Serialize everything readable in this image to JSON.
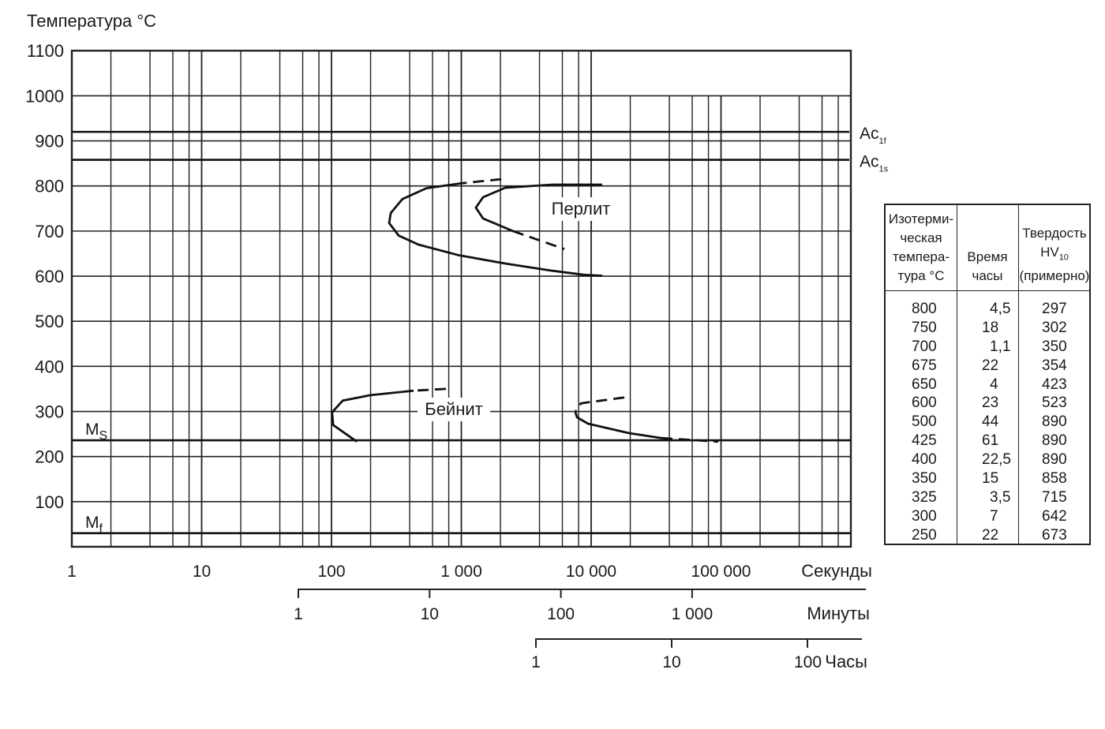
{
  "chart_data": {
    "type": "line",
    "title": "",
    "ylabel": "Температура °C",
    "xscale": "log",
    "xlim": [
      1,
      1000000
    ],
    "ylim": [
      0,
      1100
    ],
    "grid": true,
    "y_ticks": [
      "1100",
      "1000",
      "900",
      "800",
      "700",
      "600",
      "500",
      "400",
      "300",
      "200",
      "100"
    ],
    "x_axes": [
      {
        "unit": "Секунды",
        "ticks": [
          "1",
          "10",
          "100",
          "1 000",
          "10 000",
          "100 000"
        ]
      },
      {
        "unit": "Минуты",
        "ticks": [
          "1",
          "10",
          "100",
          "1 000"
        ]
      },
      {
        "unit": "Часы",
        "ticks": [
          "1",
          "10",
          "100"
        ]
      }
    ],
    "reference_lines": [
      {
        "name": "Ac1f",
        "label": "Ac",
        "sub": "1f",
        "T": 920
      },
      {
        "name": "Ac1s",
        "label": "Ac",
        "sub": "1s",
        "T": 858
      },
      {
        "name": "Ms",
        "label": "M",
        "sub": "S",
        "T": 236
      },
      {
        "name": "Mf",
        "label": "M",
        "sub": "f",
        "T": 30
      }
    ],
    "region_labels": {
      "pearlite": "Перлит",
      "bainite": "Бейнит"
    },
    "curves": [
      {
        "id": "pearlite-start",
        "dashed": [
          [
            2030,
            815
          ],
          [
            1007,
            806
          ]
        ],
        "solid": [
          [
            1007,
            806
          ],
          [
            537,
            795
          ],
          [
            352,
            771
          ],
          [
            286,
            740
          ],
          [
            278,
            718
          ],
          [
            329,
            690
          ],
          [
            467,
            670
          ],
          [
            939,
            647
          ],
          [
            2174,
            628
          ],
          [
            5040,
            612
          ],
          [
            8810,
            603
          ],
          [
            12170,
            601
          ]
        ]
      },
      {
        "id": "pearlite-end",
        "solid": [
          [
            12170,
            803
          ],
          [
            5040,
            803
          ],
          [
            2174,
            796
          ],
          [
            1469,
            775
          ],
          [
            1294,
            752
          ],
          [
            1469,
            728
          ],
          [
            2500,
            700
          ]
        ],
        "dashed": [
          [
            2500,
            700
          ],
          [
            6210,
            660
          ]
        ]
      },
      {
        "id": "bainite-start",
        "dashed": [
          [
            761,
            350
          ],
          [
            429,
            346
          ]
        ],
        "solid": [
          [
            429,
            346
          ],
          [
            199,
            336
          ],
          [
            122,
            324
          ],
          [
            101,
            298
          ],
          [
            103,
            270
          ],
          [
            157,
            233
          ]
        ]
      },
      {
        "id": "bainite-end",
        "dashed": [
          [
            17990,
            331
          ],
          [
            8340,
            318
          ],
          [
            7550,
            299
          ]
        ],
        "solid": [
          [
            7550,
            299
          ],
          [
            7780,
            287
          ],
          [
            9460,
            273
          ],
          [
            19590,
            252
          ],
          [
            34750,
            241
          ]
        ],
        "dashed2": [
          [
            34750,
            241
          ],
          [
            95200,
            233
          ]
        ]
      }
    ]
  },
  "table": {
    "headers": [
      [
        "Изотерми-",
        "ческая",
        "темпера-",
        "тура °C"
      ],
      [
        "Время",
        "часы"
      ],
      [
        "Твердость",
        "HV",
        "10",
        "(примерно)"
      ]
    ],
    "rows": [
      [
        "800",
        "4,5",
        "297"
      ],
      [
        "750",
        "18",
        "302"
      ],
      [
        "700",
        "1,1",
        "350"
      ],
      [
        "675",
        "22",
        "354"
      ],
      [
        "650",
        "4",
        "423"
      ],
      [
        "600",
        "23",
        "523"
      ],
      [
        "500",
        "44",
        "890"
      ],
      [
        "425",
        "61",
        "890"
      ],
      [
        "400",
        "22,5",
        "890"
      ],
      [
        "350",
        "15",
        "858"
      ],
      [
        "325",
        "3,5",
        "715"
      ],
      [
        "300",
        "7",
        "642"
      ],
      [
        "250",
        "22",
        "673"
      ]
    ]
  }
}
